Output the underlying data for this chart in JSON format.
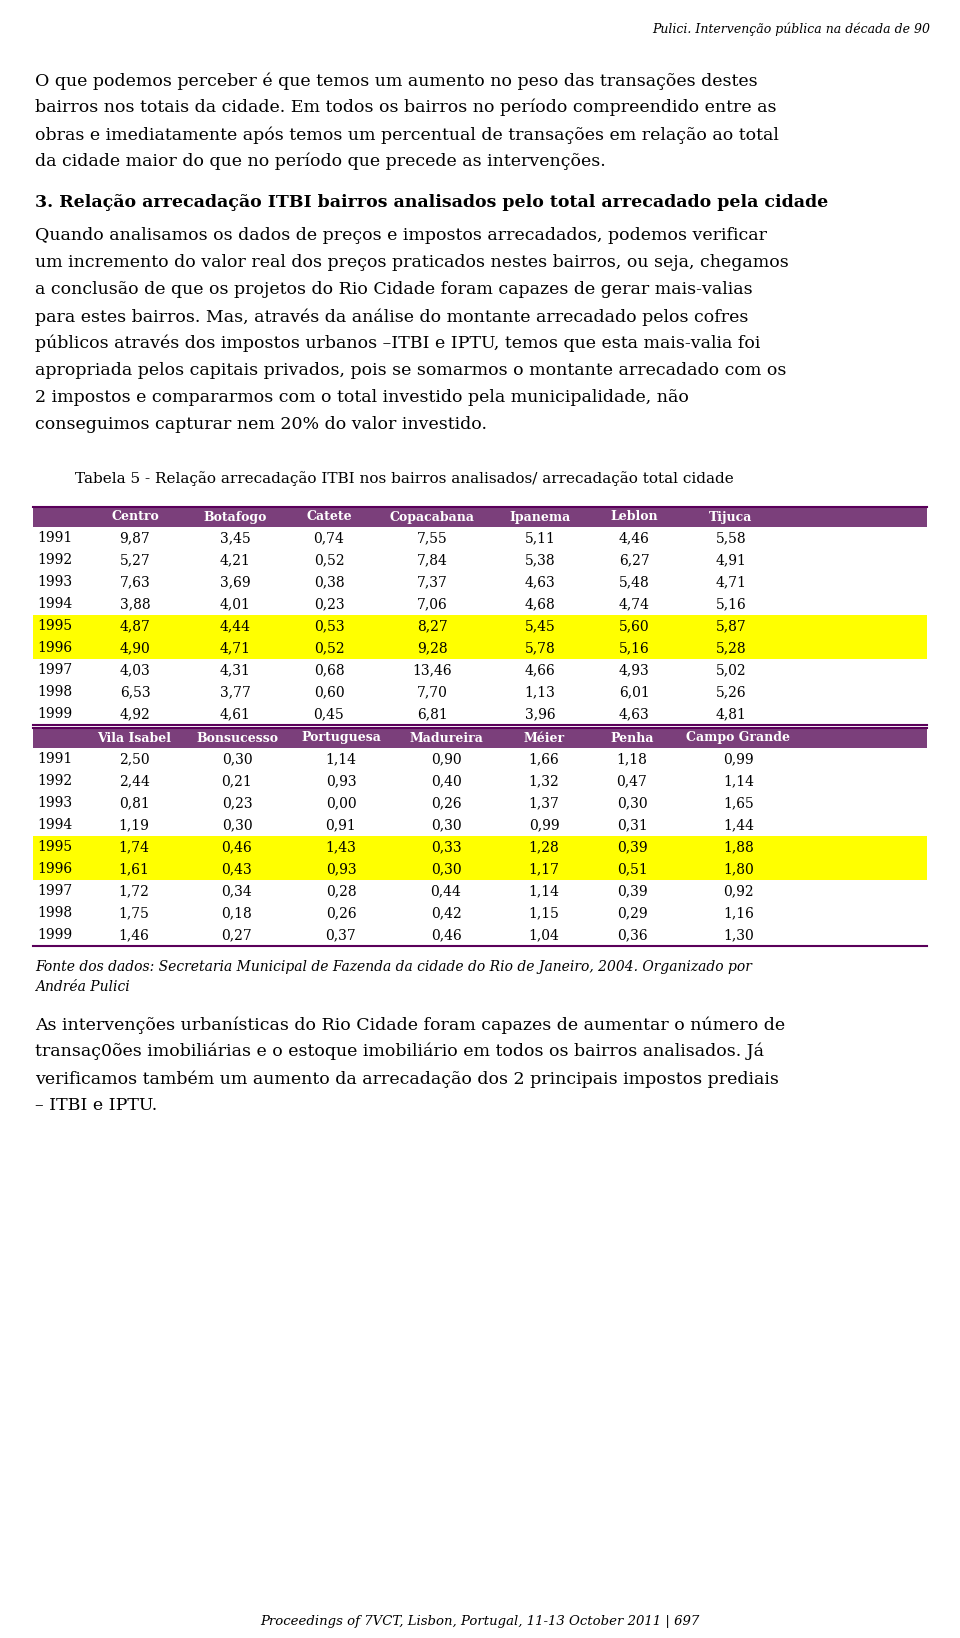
{
  "header_text": "Pulici. Intervenção pública na década de 90",
  "section_title": "3. Relação arrecadação ITBI bairros analisados pelo total arrecadado pela cidade",
  "table_title": "Tabela 5 - Relação arrecadação ITBI nos bairros analisados/ arrecadação total cidade",
  "table1_headers": [
    "",
    "Centro",
    "Botafogo",
    "Catete",
    "Copacabana",
    "Ipanema",
    "Leblon",
    "Tijuca"
  ],
  "table1_data": [
    [
      "1991",
      "9,87",
      "3,45",
      "0,74",
      "7,55",
      "5,11",
      "4,46",
      "5,58"
    ],
    [
      "1992",
      "5,27",
      "4,21",
      "0,52",
      "7,84",
      "5,38",
      "6,27",
      "4,91"
    ],
    [
      "1993",
      "7,63",
      "3,69",
      "0,38",
      "7,37",
      "4,63",
      "5,48",
      "4,71"
    ],
    [
      "1994",
      "3,88",
      "4,01",
      "0,23",
      "7,06",
      "4,68",
      "4,74",
      "5,16"
    ],
    [
      "1995",
      "4,87",
      "4,44",
      "0,53",
      "8,27",
      "5,45",
      "5,60",
      "5,87"
    ],
    [
      "1996",
      "4,90",
      "4,71",
      "0,52",
      "9,28",
      "5,78",
      "5,16",
      "5,28"
    ],
    [
      "1997",
      "4,03",
      "4,31",
      "0,68",
      "13,46",
      "4,66",
      "4,93",
      "5,02"
    ],
    [
      "1998",
      "6,53",
      "3,77",
      "0,60",
      "7,70",
      "1,13",
      "6,01",
      "5,26"
    ],
    [
      "1999",
      "4,92",
      "4,61",
      "0,45",
      "6,81",
      "3,96",
      "4,63",
      "4,81"
    ]
  ],
  "table1_highlight_rows": [
    4,
    5
  ],
  "table2_headers": [
    "",
    "Vila Isabel",
    "Bonsucesso",
    "Portuguesa",
    "Madureira",
    "Méier",
    "Penha",
    "Campo Grande"
  ],
  "table2_data": [
    [
      "1991",
      "2,50",
      "0,30",
      "1,14",
      "0,90",
      "1,66",
      "1,18",
      "0,99"
    ],
    [
      "1992",
      "2,44",
      "0,21",
      "0,93",
      "0,40",
      "1,32",
      "0,47",
      "1,14"
    ],
    [
      "1993",
      "0,81",
      "0,23",
      "0,00",
      "0,26",
      "1,37",
      "0,30",
      "1,65"
    ],
    [
      "1994",
      "1,19",
      "0,30",
      "0,91",
      "0,30",
      "0,99",
      "0,31",
      "1,44"
    ],
    [
      "1995",
      "1,74",
      "0,46",
      "1,43",
      "0,33",
      "1,28",
      "0,39",
      "1,88"
    ],
    [
      "1996",
      "1,61",
      "0,43",
      "0,93",
      "0,30",
      "1,17",
      "0,51",
      "1,80"
    ],
    [
      "1997",
      "1,72",
      "0,34",
      "0,28",
      "0,44",
      "1,14",
      "0,39",
      "0,92"
    ],
    [
      "1998",
      "1,75",
      "0,18",
      "0,26",
      "0,42",
      "1,15",
      "0,29",
      "1,16"
    ],
    [
      "1999",
      "1,46",
      "0,27",
      "0,37",
      "0,46",
      "1,04",
      "0,36",
      "1,30"
    ]
  ],
  "table2_highlight_rows": [
    4,
    5
  ],
  "footnote_line1": "Fonte dos dados: Secretaria Municipal de Fazenda da cidade do Rio de Janeiro, 2004. Organizado por",
  "footnote_line2": "Andréa Pulici",
  "footer_text": "Proceedings of 7VCT, Lisbon, Portugal, 11-13 October 2011 | 697",
  "header_color": "#7b3f7b",
  "highlight_color": "#ffff00",
  "table_line_color": "#5a005a",
  "bg_color": "#ffffff",
  "para1_lines": [
    "O que podemos perceber é que temos um aumento no peso das transações destes",
    "bairros nos totais da cidade. Em todos os bairros no período compreendido entre as",
    "obras e imediatamente após temos um percentual de transações em relação ao total",
    "da cidade maior do que no período que precede as intervenções."
  ],
  "para2_lines": [
    "Quando analisamos os dados de preços e impostos arrecadados, podemos verificar",
    "um incremento do valor real dos preços praticados nestes bairros, ou seja, chegamos",
    "a conclusão de que os projetos do Rio Cidade foram capazes de gerar mais-valias",
    "para estes bairros. Mas, através da análise do montante arrecadado pelos cofres",
    "públicos através dos impostos urbanos –ITBI e IPTU, temos que esta mais-valia foi",
    "apropriada pelos capitais privados, pois se somarmos o montante arrecadado com os",
    "2 impostos e compararmos com o total investido pela municipalidade, não",
    "conseguimos capturar nem 20% do valor investido."
  ],
  "para3_lines": [
    "As intervenções urbanísticas do Rio Cidade foram capazes de aumentar o número de",
    "transaç0ões imobiliárias e o estoque imobiliário em todos os bairros analisados. Já",
    "verificamos também um aumento da arrecadação dos 2 principais impostos prediais",
    "– ITBI e IPTU."
  ]
}
